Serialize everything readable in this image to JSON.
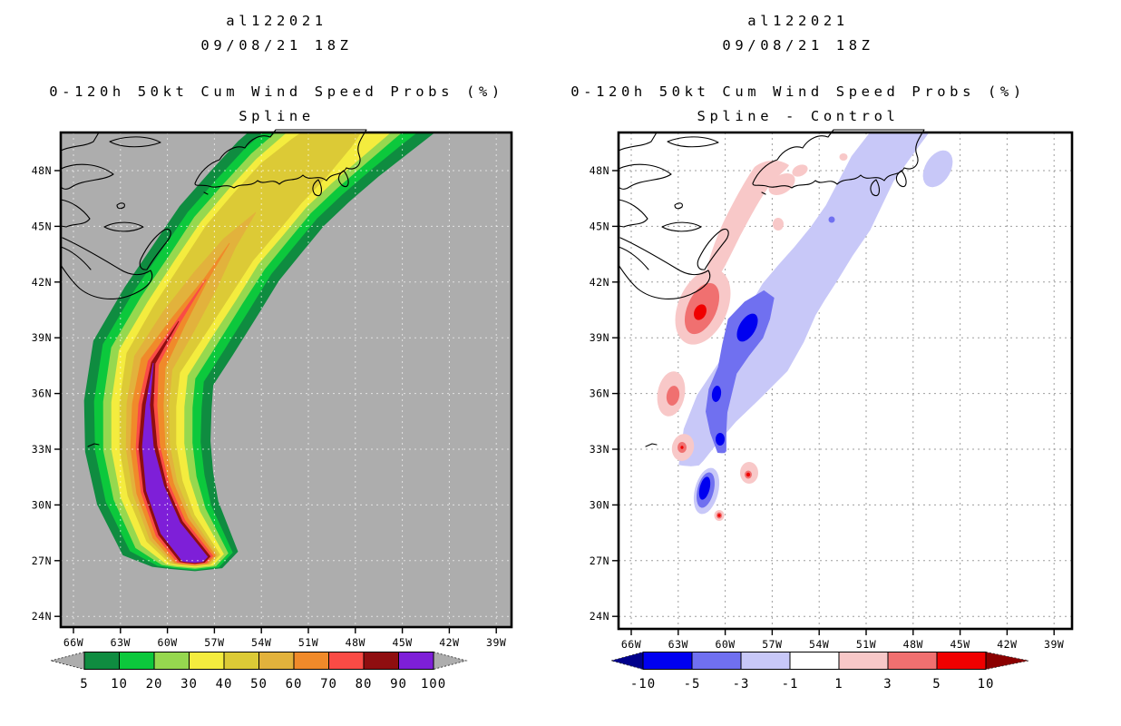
{
  "figure": {
    "background": "#ffffff"
  },
  "panels": [
    {
      "storm_id": "al122021",
      "init_time": "09/08/21 18Z",
      "product": "0-120h 50kt Cum Wind Speed Probs (%)",
      "variant": "Spline",
      "colorbar": {
        "labels": [
          "5",
          "10",
          "20",
          "30",
          "40",
          "50",
          "60",
          "70",
          "80",
          "90",
          "100"
        ],
        "colors": [
          "#0f8c40",
          "#0cc83c",
          "#96d84f",
          "#f4ec3e",
          "#dcca36",
          "#e2b23c",
          "#f08a2a",
          "#fa4b45",
          "#8f0e10",
          "#7e1fd8"
        ],
        "left_arrow": "#adadad",
        "right_arrow": "#adadad"
      }
    },
    {
      "storm_id": "al122021",
      "init_time": "09/08/21 18Z",
      "product": "0-120h 50kt Cum Wind Speed Probs (%)",
      "variant": "Spline - Control",
      "colorbar": {
        "labels": [
          "-10",
          "-5",
          "-3",
          "-1",
          "1",
          "3",
          "5",
          "10"
        ],
        "colors": [
          "#0000f0",
          "#7070f0",
          "#c8c8f8",
          "#ffffff",
          "#f8c8c8",
          "#f07070",
          "#f00000"
        ],
        "left_arrow": "#00008b",
        "right_arrow": "#8b0000"
      }
    }
  ],
  "axes": {
    "lat_labels": [
      "48N",
      "45N",
      "42N",
      "39N",
      "36N",
      "33N",
      "30N",
      "27N",
      "24N"
    ],
    "lon_labels": [
      "66W",
      "63W",
      "60W",
      "57W",
      "54W",
      "51W",
      "48W",
      "45W",
      "42W",
      "39W"
    ]
  },
  "map_colors": {
    "left_background": "#adadad",
    "right_background": "#ffffff",
    "coastline": "#000000",
    "left_grid": "rgba(255,255,255,0.65)",
    "right_grid": "#9e9e9e"
  },
  "chart_data": [
    {
      "type": "contour",
      "panel": "left",
      "title": "al122021 09/08/21 18Z",
      "subtitle": "0-120h 50kt Cum Wind Speed Probs (%) - Spline",
      "lon_ticks_deg_west": [
        66,
        63,
        60,
        57,
        54,
        51,
        48,
        45,
        42,
        39
      ],
      "lat_ticks_deg_north": [
        48,
        45,
        42,
        39,
        36,
        33,
        30,
        27,
        24
      ],
      "lon_range_deg_west": [
        66.8,
        38.0
      ],
      "lat_range_deg_north": [
        23.4,
        50.1
      ],
      "grid": "dashed every 3 degrees",
      "levels_percent": [
        5,
        10,
        20,
        30,
        40,
        50,
        60,
        70,
        80,
        90,
        100
      ],
      "level_colors": [
        "#0f8c40",
        "#0cc83c",
        "#96d84f",
        "#f4ec3e",
        "#dcca36",
        "#e2b23c",
        "#f08a2a",
        "#fa4b45",
        "#8f0e10",
        "#7e1fd8"
      ],
      "below_min_color": "#adadad",
      "swath_centerline_lon_lat": [
        [
          -58.2,
          27.1
        ],
        [
          -60.8,
          30.9
        ],
        [
          -61.3,
          35.4
        ],
        [
          -60.9,
          37.6
        ],
        [
          -59.3,
          39.9
        ],
        [
          -57.5,
          42.1
        ],
        [
          -56.0,
          44.1
        ],
        [
          -54.4,
          45.7
        ],
        [
          -52.7,
          47.3
        ],
        [
          -50.9,
          48.7
        ],
        [
          -49.2,
          50.1
        ]
      ],
      "max_values_along_track_percent": [
        100,
        100,
        100,
        90,
        80,
        70,
        60,
        50,
        40,
        40,
        35
      ],
      "description": "Curved cumulative 50kt wind probability swath; 90-100% purple core from ~27.3N,58W up to ~37.5N,61W with flat southern start line; probabilities decrease outward and northeastward; 30-50% band crosses Newfoundland; gray background below 5%."
    },
    {
      "type": "contour",
      "panel": "right",
      "title": "al122021 09/08/21 18Z",
      "subtitle": "0-120h 50kt Cum Wind Speed Probs (%) - Spline - Control",
      "lon_ticks_deg_west": [
        66,
        63,
        60,
        57,
        54,
        51,
        48,
        45,
        42,
        39
      ],
      "lat_ticks_deg_north": [
        48,
        45,
        42,
        39,
        36,
        33,
        30,
        27,
        24
      ],
      "grid": "dashed every 3 degrees",
      "levels_percent": [
        -10,
        -5,
        -3,
        -1,
        1,
        3,
        5,
        10
      ],
      "level_colors": [
        "#0000f0",
        "#7070f0",
        "#c8c8f8",
        "#ffffff",
        "#f8c8c8",
        "#f07070",
        "#f00000"
      ],
      "negative_minima_lon_lat_value": [
        [
          -58.6,
          39.5,
          -10
        ],
        [
          -60.6,
          35.5,
          -8
        ],
        [
          -60.3,
          33.5,
          -7
        ],
        [
          -61.3,
          30.8,
          -10
        ]
      ],
      "positive_maxima_lon_lat_value": [
        [
          -61.6,
          40.4,
          10
        ],
        [
          -63.5,
          35.9,
          5
        ],
        [
          -62.8,
          32.6,
          4
        ],
        [
          -58.5,
          31.7,
          6
        ],
        [
          -60.4,
          29.4,
          6
        ]
      ],
      "description": "Spline minus control difference: elongated negative (blue) band east of/along the track from ~29N,61W to ~49N,46W reaching -10%; positive (red) cells west of the track reaching +10%; weak +1 to 3% pink band from Nova Scotia toward Newfoundland; white where within +/-1%."
    }
  ]
}
